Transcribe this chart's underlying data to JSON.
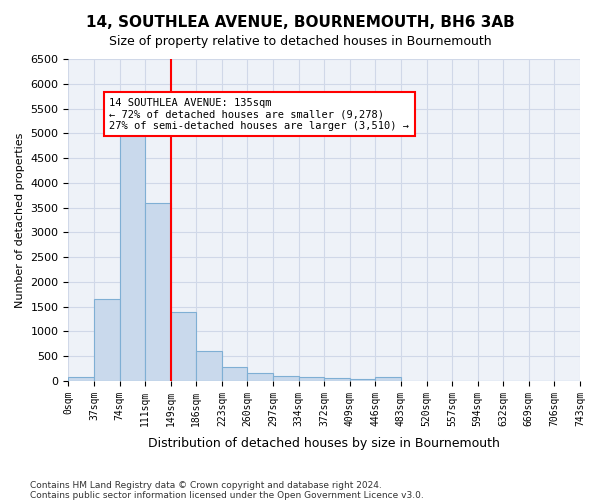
{
  "title": "14, SOUTHLEA AVENUE, BOURNEMOUTH, BH6 3AB",
  "subtitle": "Size of property relative to detached houses in Bournemouth",
  "xlabel": "Distribution of detached houses by size in Bournemouth",
  "ylabel": "Number of detached properties",
  "footer1": "Contains HM Land Registry data © Crown copyright and database right 2024.",
  "footer2": "Contains public sector information licensed under the Open Government Licence v3.0.",
  "bin_labels": [
    "0sqm",
    "37sqm",
    "74sqm",
    "111sqm",
    "149sqm",
    "186sqm",
    "223sqm",
    "260sqm",
    "297sqm",
    "334sqm",
    "372sqm",
    "409sqm",
    "446sqm",
    "483sqm",
    "520sqm",
    "557sqm",
    "594sqm",
    "632sqm",
    "669sqm",
    "706sqm",
    "743sqm"
  ],
  "bar_values": [
    75,
    1650,
    5050,
    3600,
    1400,
    610,
    290,
    150,
    100,
    75,
    55,
    35,
    75,
    0,
    0,
    0,
    0,
    0,
    0,
    0
  ],
  "bar_color": "#c9d9ec",
  "bar_edge_color": "#7fafd4",
  "vline_x": 4,
  "vline_color": "red",
  "ylim": [
    0,
    6500
  ],
  "yticks": [
    0,
    500,
    1000,
    1500,
    2000,
    2500,
    3000,
    3500,
    4000,
    4500,
    5000,
    5500,
    6000,
    6500
  ],
  "annotation_title": "14 SOUTHLEA AVENUE: 135sqm",
  "annotation_line1": "← 72% of detached houses are smaller (9,278)",
  "annotation_line2": "27% of semi-detached houses are larger (3,510) →",
  "annotation_box_color": "white",
  "annotation_box_edge": "red",
  "grid_color": "#d0d8e8",
  "bg_color": "#eef2f8"
}
